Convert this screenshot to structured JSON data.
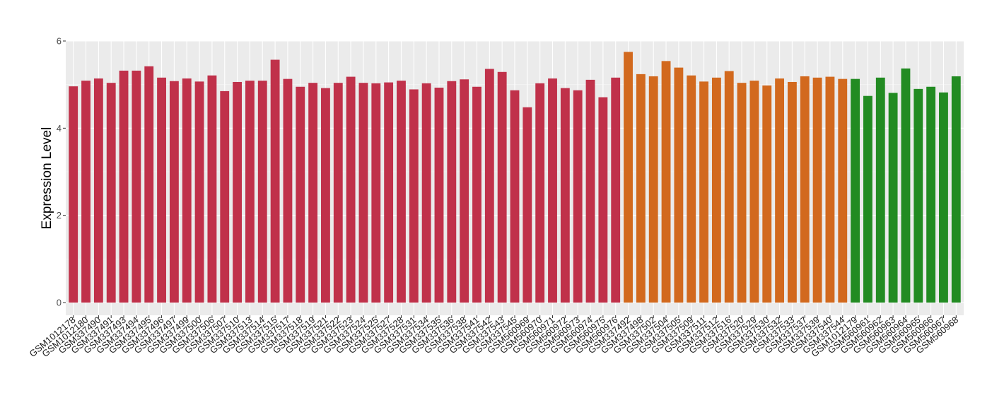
{
  "chart_data": {
    "type": "bar",
    "title": "",
    "xlabel": "",
    "ylabel": "Expression Level",
    "ylim": [
      0,
      6
    ],
    "yticks": [
      0,
      2,
      4,
      6
    ],
    "grid": true,
    "legend": "none",
    "colors": {
      "panel_background": "#ebebeb",
      "grid_major": "#ffffff",
      "group_1": "#c0314a",
      "group_2": "#d2691e",
      "group_3": "#228b22"
    },
    "categories": [
      "GSM1012178",
      "GSM1012180",
      "GSM337490",
      "GSM337491",
      "GSM337493",
      "GSM337494",
      "GSM337495",
      "GSM337496",
      "GSM337497",
      "GSM337499",
      "GSM337500",
      "GSM337506",
      "GSM337507",
      "GSM337510",
      "GSM337513",
      "GSM337514",
      "GSM337515",
      "GSM337517",
      "GSM337518",
      "GSM337519",
      "GSM337521",
      "GSM337522",
      "GSM337523",
      "GSM337524",
      "GSM337525",
      "GSM337527",
      "GSM337528",
      "GSM337531",
      "GSM337534",
      "GSM337535",
      "GSM337536",
      "GSM337538",
      "GSM337541",
      "GSM337542",
      "GSM337543",
      "GSM337545",
      "GSM560969",
      "GSM560970",
      "GSM560971",
      "GSM560972",
      "GSM560973",
      "GSM560974",
      "GSM560975",
      "GSM560976",
      "GSM337492",
      "GSM337498",
      "GSM337502",
      "GSM337504",
      "GSM337505",
      "GSM337509",
      "GSM337511",
      "GSM337512",
      "GSM337516",
      "GSM337520",
      "GSM337529",
      "GSM337530",
      "GSM337532",
      "GSM337533",
      "GSM337537",
      "GSM337539",
      "GSM337540",
      "GSM337544",
      "GSM1012179",
      "GSM560961",
      "GSM560962",
      "GSM560963",
      "GSM560964",
      "GSM560965",
      "GSM560966",
      "GSM560967",
      "GSM560968"
    ],
    "values": [
      4.96,
      5.09,
      5.14,
      5.04,
      5.32,
      5.32,
      5.42,
      5.16,
      5.08,
      5.14,
      5.07,
      5.21,
      4.85,
      5.06,
      5.09,
      5.09,
      5.57,
      5.13,
      4.95,
      5.04,
      4.92,
      5.04,
      5.18,
      5.04,
      5.03,
      5.05,
      5.09,
      4.89,
      5.03,
      4.93,
      5.08,
      5.12,
      4.95,
      5.36,
      5.29,
      4.87,
      4.48,
      5.03,
      5.14,
      4.92,
      4.87,
      5.11,
      4.71,
      5.16,
      5.75,
      5.24,
      5.19,
      5.54,
      5.39,
      5.21,
      5.07,
      5.16,
      5.31,
      5.04,
      5.09,
      4.98,
      5.14,
      5.06,
      5.19,
      5.16,
      5.18,
      5.13,
      5.13,
      4.74,
      5.16,
      4.81,
      5.37,
      4.9,
      4.95,
      4.82,
      5.19
    ],
    "groups": [
      1,
      1,
      1,
      1,
      1,
      1,
      1,
      1,
      1,
      1,
      1,
      1,
      1,
      1,
      1,
      1,
      1,
      1,
      1,
      1,
      1,
      1,
      1,
      1,
      1,
      1,
      1,
      1,
      1,
      1,
      1,
      1,
      1,
      1,
      1,
      1,
      1,
      1,
      1,
      1,
      1,
      1,
      1,
      1,
      2,
      2,
      2,
      2,
      2,
      2,
      2,
      2,
      2,
      2,
      2,
      2,
      2,
      2,
      2,
      2,
      2,
      2,
      3,
      3,
      3,
      3,
      3,
      3,
      3,
      3,
      3
    ]
  }
}
